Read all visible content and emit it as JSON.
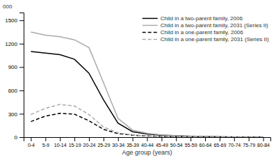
{
  "chart_data": {
    "type": "line",
    "categories": [
      "0-4",
      "5-9",
      "10-14",
      "15-19",
      "20-24",
      "25-29",
      "30-34",
      "35-39",
      "40-44",
      "45-49",
      "50-54",
      "55-59",
      "60-64",
      "65-69",
      "70-74",
      "75-79",
      "80-84"
    ],
    "series": [
      {
        "name": "Child in a two-parent family, 2006",
        "color": "#000000",
        "line_style": "solid",
        "values": [
          1100,
          1080,
          1060,
          1000,
          820,
          480,
          180,
          70,
          40,
          25,
          18,
          12,
          8,
          5,
          3,
          2,
          1
        ]
      },
      {
        "name": "Child in a two-parent family, 2031 (Series II)",
        "color": "#aaaaaa",
        "line_style": "solid",
        "values": [
          1350,
          1310,
          1290,
          1250,
          1150,
          700,
          240,
          90,
          50,
          30,
          20,
          14,
          9,
          5,
          3,
          2,
          1
        ]
      },
      {
        "name": "Child in a one-parent family, 2006",
        "color": "#000000",
        "line_style": "dashed",
        "values": [
          200,
          270,
          305,
          295,
          210,
          100,
          45,
          25,
          15,
          10,
          7,
          5,
          3,
          2,
          1,
          1,
          0
        ]
      },
      {
        "name": "Child in a one-parent family, 2031 (Series II)",
        "color": "#aaaaaa",
        "line_style": "dashed",
        "values": [
          290,
          370,
          420,
          400,
          290,
          130,
          55,
          28,
          16,
          10,
          7,
          5,
          3,
          2,
          1,
          1,
          0
        ]
      }
    ],
    "ylim": [
      0,
      1600
    ],
    "yticks": [
      0,
      300,
      600,
      900,
      1200,
      1500
    ],
    "xlabel": "Age group (years)",
    "ylabel": "000",
    "grid": false,
    "legend": "upper right"
  }
}
